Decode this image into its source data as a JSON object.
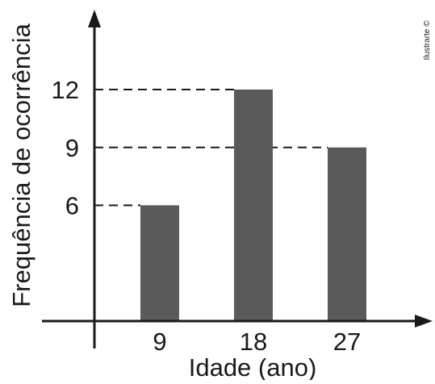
{
  "chart_data": {
    "type": "bar",
    "title": "",
    "xlabel": "Idade (ano)",
    "ylabel": "Frequência de ocorrência",
    "categories": [
      "9",
      "18",
      "27"
    ],
    "values": [
      6,
      12,
      9
    ],
    "yticks": [
      "6",
      "9",
      "12"
    ],
    "ylim": [
      0,
      16
    ],
    "grid": false,
    "reference_lines": "dashed lines from y-axis to each bar top",
    "bar_color": "#5a5a5a",
    "axis_color": "#1a1a1a"
  },
  "watermark": "Ilustrarte ©"
}
